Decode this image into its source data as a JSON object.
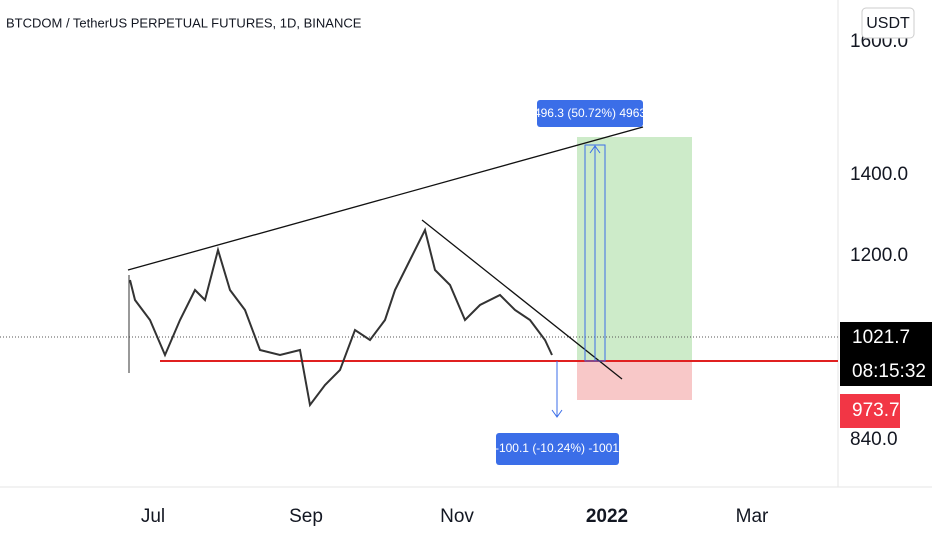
{
  "header": {
    "title": "BTCDOM / TetherUS PERPETUAL FUTURES, 1D, BINANCE",
    "currency_button": "USDT"
  },
  "price_axis": {
    "labels": [
      "1600.0",
      "1400.0",
      "1200.0",
      "840.0"
    ],
    "current_price": "1021.7",
    "countdown": "08:15:32",
    "level_label": "973.7"
  },
  "time_axis": {
    "labels": [
      "Jul",
      "Sep",
      "Nov",
      "2022",
      "Mar"
    ]
  },
  "annotations": {
    "target": "496.3 (50.72%) 4963",
    "stop": "-100.1 (-10.24%) -1001"
  }
}
